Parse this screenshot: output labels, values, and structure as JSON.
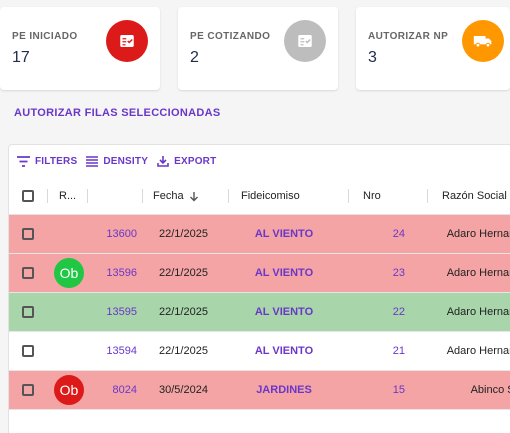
{
  "cards": [
    {
      "title": "PE INICIADO",
      "value": "17",
      "color": "#dd1a1a",
      "icon": "checklist-icon"
    },
    {
      "title": "PE COTIZANDO",
      "value": "2",
      "color": "#bdbdbd",
      "icon": "checklist-icon"
    },
    {
      "title": "AUTORIZAR NP",
      "value": "3",
      "color": "#ff9800",
      "icon": "truck-icon"
    }
  ],
  "authorize_button": "AUTORIZAR FILAS SELECCIONADAS",
  "toolbar": {
    "filters": "FILTERS",
    "density": "DENSITY",
    "export": "EXPORT"
  },
  "columns": {
    "r": "R...",
    "fecha": "Fecha",
    "fideicomiso": "Fideicomiso",
    "nro": "Nro",
    "razon": "Razón Social"
  },
  "rows": [
    {
      "id": "13600",
      "fecha": "22/1/2025",
      "fideicomiso": "AL VIENTO",
      "nro": "24",
      "razon": "Adaro Hernan A",
      "badge": "",
      "bg": "#f4a4a4"
    },
    {
      "id": "13596",
      "fecha": "22/1/2025",
      "fideicomiso": "AL VIENTO",
      "nro": "23",
      "razon": "Adaro Hernan A",
      "badge": "Ob",
      "badge_color": "#1fc744",
      "bg": "#f4a4a4"
    },
    {
      "id": "13595",
      "fecha": "22/1/2025",
      "fideicomiso": "AL VIENTO",
      "nro": "22",
      "razon": "Adaro Hernan A",
      "badge": "",
      "bg": "#a8d5aa"
    },
    {
      "id": "13594",
      "fecha": "22/1/2025",
      "fideicomiso": "AL VIENTO",
      "nro": "21",
      "razon": "Adaro Hernan A",
      "badge": "",
      "bg": "#ffffff"
    },
    {
      "id": "8024",
      "fecha": "30/5/2024",
      "fideicomiso": "JARDINES",
      "nro": "15",
      "razon": "Abinco S.A",
      "badge": "Ob",
      "badge_color": "#dd1a1a",
      "bg": "#f4a4a4"
    }
  ]
}
